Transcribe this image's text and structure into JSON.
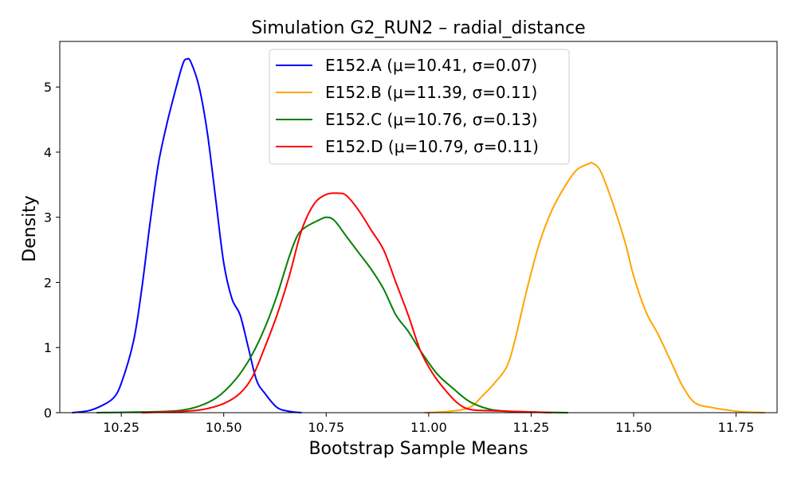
{
  "chart_data": {
    "type": "line",
    "title": "Simulation G2_RUN2 – radial_distance",
    "xlabel": "Bootstrap Sample Means",
    "ylabel": "Density",
    "xlim": [
      10.1,
      11.85
    ],
    "ylim": [
      0,
      5.7
    ],
    "xticks": [
      10.25,
      10.5,
      10.75,
      11.0,
      11.25,
      11.5,
      11.75
    ],
    "xtick_labels": [
      "10.25",
      "10.50",
      "10.75",
      "11.00",
      "11.25",
      "11.50",
      "11.75"
    ],
    "yticks": [
      0,
      1,
      2,
      3,
      4,
      5
    ],
    "ytick_labels": [
      "0",
      "1",
      "2",
      "3",
      "4",
      "5"
    ],
    "grid": false,
    "legend_position": "top-center",
    "series": [
      {
        "name": "E152.A (μ=10.41, σ=0.07)",
        "color": "#0000ff",
        "x": [
          10.13,
          10.17,
          10.2,
          10.23,
          10.25,
          10.28,
          10.3,
          10.32,
          10.34,
          10.36,
          10.38,
          10.4,
          10.41,
          10.42,
          10.44,
          10.46,
          10.48,
          10.5,
          10.52,
          10.54,
          10.56,
          10.58,
          10.6,
          10.63,
          10.66,
          10.69
        ],
        "y": [
          0.0,
          0.03,
          0.1,
          0.22,
          0.45,
          1.1,
          1.9,
          2.9,
          3.8,
          4.4,
          4.9,
          5.35,
          5.43,
          5.38,
          5.0,
          4.3,
          3.3,
          2.3,
          1.75,
          1.5,
          1.0,
          0.5,
          0.3,
          0.08,
          0.02,
          0.0
        ]
      },
      {
        "name": "E152.B (μ=11.39, σ=0.11)",
        "color": "#ffa500",
        "x": [
          10.99,
          11.05,
          11.1,
          11.13,
          11.16,
          11.19,
          11.21,
          11.24,
          11.27,
          11.3,
          11.33,
          11.36,
          11.39,
          11.4,
          11.42,
          11.45,
          11.48,
          11.5,
          11.53,
          11.56,
          11.59,
          11.62,
          11.65,
          11.69,
          11.73,
          11.77,
          11.82
        ],
        "y": [
          0.0,
          0.02,
          0.08,
          0.25,
          0.45,
          0.7,
          1.1,
          1.9,
          2.6,
          3.1,
          3.45,
          3.72,
          3.82,
          3.83,
          3.7,
          3.2,
          2.6,
          2.1,
          1.55,
          1.2,
          0.8,
          0.4,
          0.15,
          0.08,
          0.04,
          0.01,
          0.0
        ]
      },
      {
        "name": "E152.C (μ=10.76, σ=0.13)",
        "color": "#008000",
        "x": [
          10.19,
          10.3,
          10.36,
          10.4,
          10.44,
          10.48,
          10.51,
          10.54,
          10.57,
          10.6,
          10.63,
          10.66,
          10.68,
          10.7,
          10.73,
          10.75,
          10.77,
          10.8,
          10.83,
          10.86,
          10.89,
          10.92,
          10.95,
          10.98,
          11.02,
          11.06,
          11.1,
          11.15,
          11.2,
          11.25,
          11.34
        ],
        "y": [
          0.0,
          0.01,
          0.02,
          0.04,
          0.1,
          0.22,
          0.38,
          0.6,
          0.9,
          1.3,
          1.8,
          2.4,
          2.72,
          2.85,
          2.95,
          3.0,
          2.95,
          2.7,
          2.45,
          2.2,
          1.9,
          1.5,
          1.25,
          0.95,
          0.6,
          0.37,
          0.17,
          0.05,
          0.02,
          0.01,
          0.0
        ]
      },
      {
        "name": "E152.D (μ=10.79, σ=0.11)",
        "color": "#ff0000",
        "x": [
          10.3,
          10.4,
          10.45,
          10.5,
          10.54,
          10.57,
          10.6,
          10.63,
          10.66,
          10.69,
          10.72,
          10.75,
          10.78,
          10.8,
          10.83,
          10.86,
          10.89,
          10.92,
          10.95,
          10.98,
          11.01,
          11.04,
          11.07,
          11.1,
          11.15,
          11.2,
          11.25,
          11.3
        ],
        "y": [
          0.0,
          0.02,
          0.05,
          0.14,
          0.3,
          0.55,
          1.0,
          1.5,
          2.1,
          2.8,
          3.2,
          3.35,
          3.37,
          3.33,
          3.1,
          2.8,
          2.5,
          2.0,
          1.5,
          0.95,
          0.6,
          0.35,
          0.15,
          0.05,
          0.03,
          0.02,
          0.01,
          0.0
        ]
      }
    ]
  }
}
